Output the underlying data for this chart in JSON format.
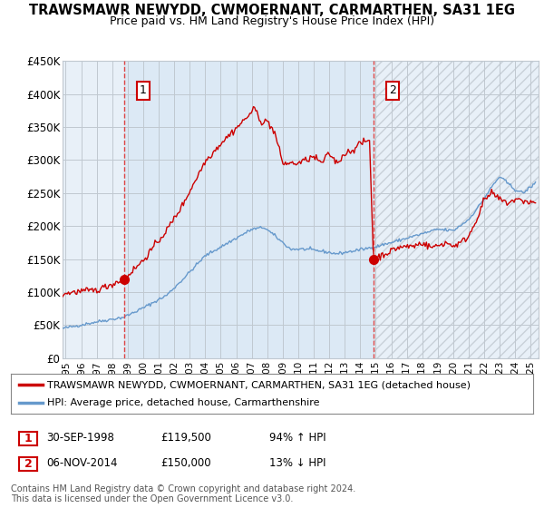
{
  "title": "TRAWSMAWR NEWYDD, CWMOERNANT, CARMARTHEN, SA31 1EG",
  "subtitle": "Price paid vs. HM Land Registry's House Price Index (HPI)",
  "ylim": [
    0,
    450000
  ],
  "yticks": [
    0,
    50000,
    100000,
    150000,
    200000,
    250000,
    300000,
    350000,
    400000,
    450000
  ],
  "ytick_labels": [
    "£0",
    "£50K",
    "£100K",
    "£150K",
    "£200K",
    "£250K",
    "£300K",
    "£350K",
    "£400K",
    "£450K"
  ],
  "xlim_start": 1994.8,
  "xlim_end": 2025.5,
  "sale1_x": 1998.75,
  "sale1_y": 119500,
  "sale1_label": "1",
  "sale1_date": "30-SEP-1998",
  "sale1_price": "£119,500",
  "sale1_hpi": "94% ↑ HPI",
  "sale2_x": 2014.85,
  "sale2_y": 150000,
  "sale2_label": "2",
  "sale2_date": "06-NOV-2014",
  "sale2_price": "£150,000",
  "sale2_hpi": "13% ↓ HPI",
  "line_color_house": "#cc0000",
  "line_color_hpi": "#6699cc",
  "marker_box_color": "#cc0000",
  "shaded_bg_color": "#ddeeff",
  "hatching_color": "#cccccc",
  "legend_label_house": "TRAWSMAWR NEWYDD, CWMOERNANT, CARMARTHEN, SA31 1EG (detached house)",
  "legend_label_hpi": "HPI: Average price, detached house, Carmarthenshire",
  "footer1": "Contains HM Land Registry data © Crown copyright and database right 2024.",
  "footer2": "This data is licensed under the Open Government Licence v3.0.",
  "background_color": "#ffffff",
  "grid_color": "#cccccc"
}
